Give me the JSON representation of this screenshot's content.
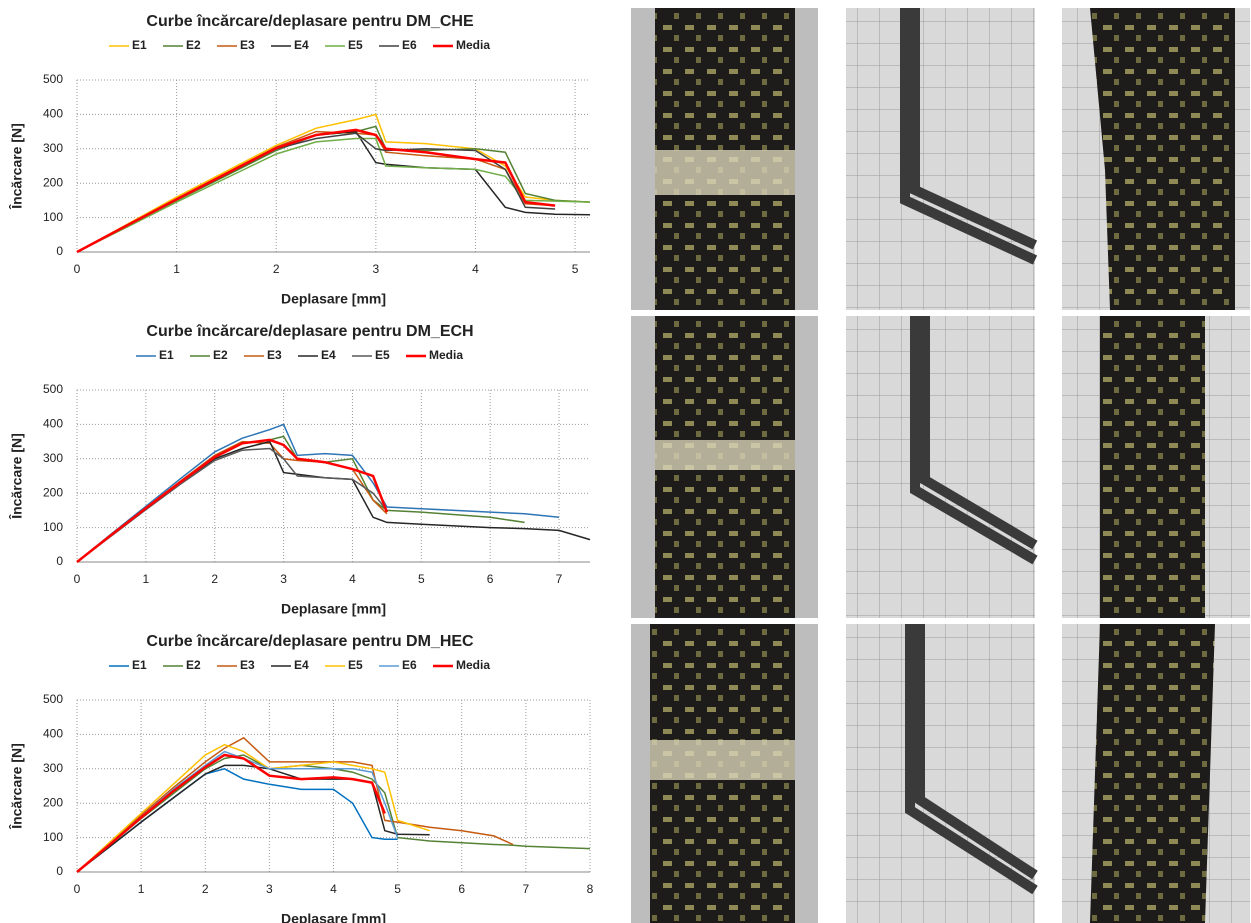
{
  "chart_data": [
    {
      "type": "line",
      "title": "Curbe încărcare/deplasare pentru DM_CHE",
      "x_label": "Deplasare  [mm]",
      "y_label": "Încărcare [N]",
      "xlim": [
        0,
        5.15
      ],
      "xticks": [
        0,
        1,
        2,
        3,
        4,
        5
      ],
      "ylim": [
        0,
        500
      ],
      "yticks": [
        0,
        100,
        200,
        300,
        400,
        500
      ],
      "grid": true,
      "x": [
        0,
        0.5,
        1,
        1.5,
        2,
        2.4,
        2.8,
        3.0,
        3.1,
        3.5,
        4.0,
        4.3,
        4.5,
        4.8,
        5.15
      ],
      "series": [
        {
          "name": "E1",
          "color": "#ffc000",
          "values": [
            0,
            80,
            160,
            235,
            310,
            360,
            385,
            400,
            320,
            315,
            300,
            250,
            160,
            150,
            145
          ]
        },
        {
          "name": "E2",
          "color": "#548235",
          "values": [
            0,
            75,
            150,
            222,
            295,
            340,
            350,
            365,
            300,
            295,
            300,
            290,
            170,
            150,
            145
          ]
        },
        {
          "name": "E3",
          "color": "#c55a11",
          "values": [
            0,
            78,
            155,
            230,
            305,
            350,
            345,
            340,
            290,
            280,
            270,
            240,
            140,
            135,
            null
          ]
        },
        {
          "name": "E4",
          "color": "#262626",
          "values": [
            0,
            76,
            152,
            226,
            300,
            340,
            350,
            260,
            255,
            245,
            240,
            130,
            115,
            110,
            108
          ]
        },
        {
          "name": "E5",
          "color": "#70ad47",
          "values": [
            0,
            72,
            145,
            215,
            285,
            320,
            330,
            330,
            250,
            245,
            240,
            220,
            150,
            148,
            145
          ]
        },
        {
          "name": "E6",
          "color": "#404040",
          "values": [
            0,
            76,
            152,
            228,
            300,
            330,
            345,
            300,
            295,
            300,
            295,
            240,
            130,
            125,
            null
          ]
        },
        {
          "name": "Media",
          "color": "#ff0000",
          "values": [
            0,
            77,
            153,
            228,
            302,
            340,
            355,
            340,
            300,
            290,
            270,
            260,
            145,
            135,
            null
          ]
        }
      ]
    },
    {
      "type": "line",
      "title": "Curbe încărcare/deplasare pentru DM_ECH",
      "x_label": "Deplasare  [mm]",
      "y_label": "Încărcare [N]",
      "xlim": [
        0,
        7.45
      ],
      "xticks": [
        0,
        1,
        2,
        3,
        4,
        5,
        6,
        7
      ],
      "ylim": [
        0,
        500
      ],
      "yticks": [
        0,
        100,
        200,
        300,
        400,
        500
      ],
      "grid": true,
      "x": [
        0,
        0.5,
        1,
        1.5,
        2,
        2.4,
        2.8,
        3.0,
        3.2,
        3.6,
        4.0,
        4.3,
        4.5,
        5.0,
        6.0,
        6.5,
        7.0,
        7.45
      ],
      "series": [
        {
          "name": "E1",
          "color": "#2e75b6",
          "values": [
            0,
            82,
            162,
            242,
            320,
            360,
            385,
            400,
            310,
            315,
            310,
            230,
            160,
            155,
            145,
            140,
            130,
            null
          ]
        },
        {
          "name": "E2",
          "color": "#548235",
          "values": [
            0,
            78,
            155,
            232,
            305,
            345,
            355,
            365,
            300,
            290,
            300,
            180,
            150,
            145,
            130,
            115,
            null,
            null
          ]
        },
        {
          "name": "E3",
          "color": "#c55a11",
          "values": [
            0,
            80,
            158,
            235,
            310,
            350,
            345,
            300,
            295,
            290,
            270,
            180,
            140,
            null,
            null,
            null,
            null,
            null
          ]
        },
        {
          "name": "E4",
          "color": "#262626",
          "values": [
            0,
            78,
            155,
            230,
            300,
            330,
            350,
            260,
            255,
            245,
            240,
            130,
            115,
            110,
            100,
            97,
            92,
            65
          ]
        },
        {
          "name": "E5",
          "color": "#595959",
          "values": [
            0,
            76,
            152,
            226,
            295,
            325,
            330,
            300,
            250,
            245,
            240,
            200,
            150,
            null,
            null,
            null,
            null,
            null
          ]
        },
        {
          "name": "Media",
          "color": "#ff0000",
          "values": [
            0,
            79,
            156,
            232,
            305,
            345,
            355,
            340,
            300,
            290,
            270,
            250,
            145,
            null,
            null,
            null,
            null,
            null
          ]
        }
      ]
    },
    {
      "type": "line",
      "title": "Curbe încărcare/deplasare pentru DM_HEC",
      "x_label": "Deplasare  [mm]",
      "y_label": "Încărcare [N]",
      "xlim": [
        0,
        8
      ],
      "xticks": [
        0,
        1,
        2,
        3,
        4,
        5,
        6,
        7,
        8
      ],
      "ylim": [
        0,
        500
      ],
      "yticks": [
        0,
        100,
        200,
        300,
        400,
        500
      ],
      "grid": true,
      "x": [
        0,
        0.5,
        1,
        1.5,
        2,
        2.3,
        2.6,
        3.0,
        3.5,
        4.0,
        4.3,
        4.6,
        4.8,
        5.0,
        5.5,
        6.0,
        6.5,
        6.8,
        7.0,
        8.0
      ],
      "series": [
        {
          "name": "E1",
          "color": "#0070c0",
          "values": [
            0,
            72,
            145,
            215,
            285,
            300,
            270,
            255,
            240,
            240,
            200,
            100,
            95,
            95,
            null,
            null,
            null,
            null,
            null,
            null
          ]
        },
        {
          "name": "E2",
          "color": "#548235",
          "values": [
            0,
            78,
            155,
            228,
            300,
            330,
            340,
            300,
            310,
            300,
            290,
            270,
            230,
            100,
            90,
            85,
            80,
            78,
            75,
            68
          ]
        },
        {
          "name": "E3",
          "color": "#c55a11",
          "values": [
            0,
            82,
            165,
            245,
            320,
            360,
            390,
            320,
            320,
            320,
            320,
            310,
            150,
            145,
            130,
            120,
            105,
            80,
            null,
            null
          ]
        },
        {
          "name": "E4",
          "color": "#262626",
          "values": [
            0,
            72,
            145,
            215,
            285,
            310,
            310,
            300,
            270,
            270,
            270,
            260,
            120,
            110,
            108,
            null,
            null,
            null,
            null,
            null
          ]
        },
        {
          "name": "E5",
          "color": "#ffc000",
          "values": [
            0,
            85,
            170,
            255,
            340,
            370,
            350,
            300,
            310,
            320,
            310,
            300,
            290,
            150,
            120,
            null,
            null,
            null,
            null,
            null
          ]
        },
        {
          "name": "E6",
          "color": "#5b9bd5",
          "values": [
            0,
            80,
            160,
            240,
            310,
            350,
            330,
            300,
            300,
            300,
            300,
            290,
            200,
            100,
            null,
            null,
            null,
            null,
            null,
            null
          ]
        },
        {
          "name": "Media",
          "color": "#ff0000",
          "values": [
            0,
            78,
            158,
            235,
            305,
            340,
            330,
            280,
            270,
            275,
            270,
            260,
            170,
            null,
            null,
            null,
            null,
            null,
            null,
            null
          ]
        }
      ]
    }
  ]
}
